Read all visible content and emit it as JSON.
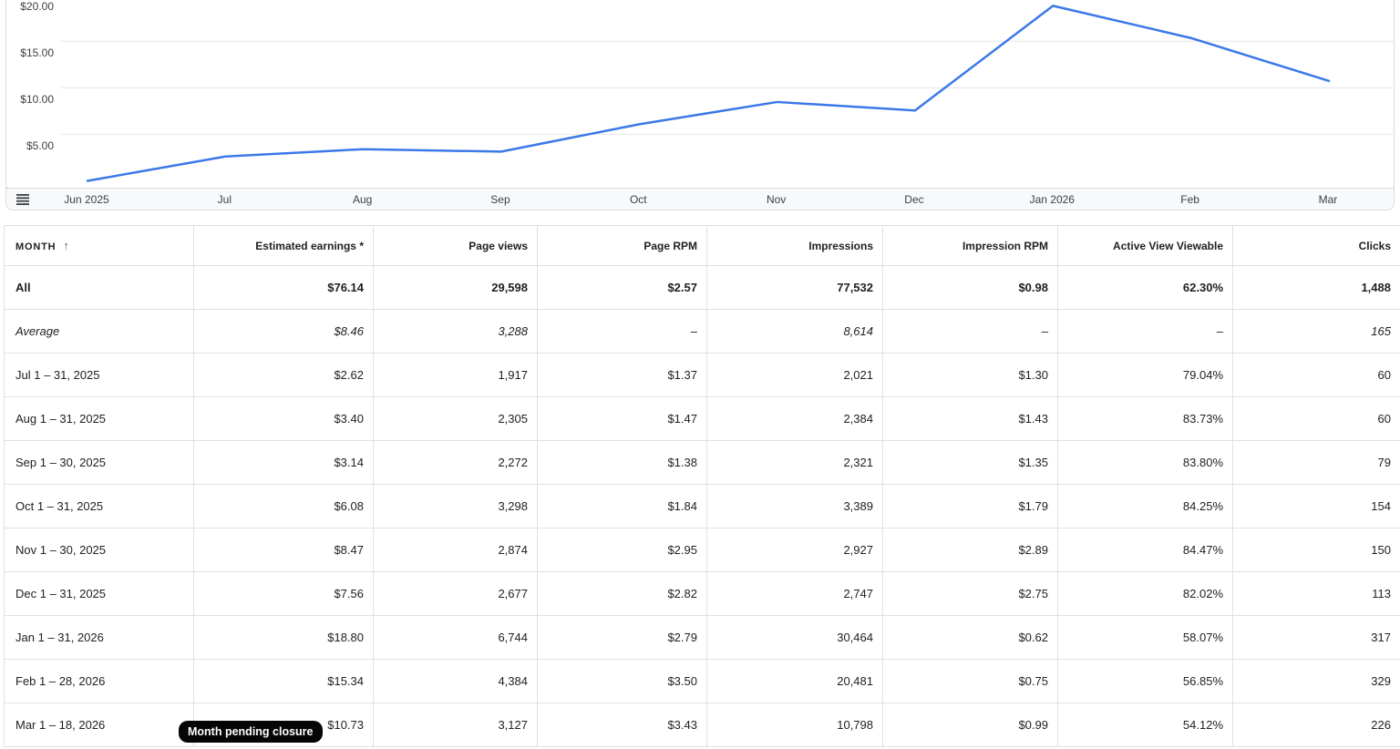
{
  "chart_data": {
    "type": "line",
    "categories": [
      "Jun 2025",
      "Jul",
      "Aug",
      "Sep",
      "Oct",
      "Nov",
      "Dec",
      "Jan 2026",
      "Feb",
      "Mar"
    ],
    "series": [
      {
        "name": "Estimated earnings",
        "values": [
          0,
          2.62,
          3.4,
          3.14,
          6.08,
          8.47,
          7.56,
          18.8,
          15.34,
          10.73
        ]
      }
    ],
    "y_ticks": [
      {
        "value": 20,
        "label": "$20.00"
      },
      {
        "value": 15,
        "label": "$15.00"
      },
      {
        "value": 10,
        "label": "$10.00"
      },
      {
        "value": 5,
        "label": "$5.00"
      }
    ],
    "ylim": [
      0,
      20.3
    ],
    "xlabel": "",
    "ylabel": "",
    "grid": "horizontal",
    "legend": "none"
  },
  "table": {
    "sort_icon": "↑",
    "sorted_by": "MONTH",
    "columns": [
      {
        "key": "month",
        "label": "MONTH",
        "align": "left"
      },
      {
        "key": "estimated-earnings",
        "label": "Estimated earnings *",
        "align": "right"
      },
      {
        "key": "page-views",
        "label": "Page views",
        "align": "right"
      },
      {
        "key": "page-rpm",
        "label": "Page RPM",
        "align": "right"
      },
      {
        "key": "impressions",
        "label": "Impressions",
        "align": "right"
      },
      {
        "key": "impression-rpm",
        "label": "Impression RPM",
        "align": "right"
      },
      {
        "key": "active-view-viewable",
        "label": "Active View Viewable",
        "align": "right"
      },
      {
        "key": "clicks",
        "label": "Clicks",
        "align": "right"
      }
    ],
    "rows": [
      {
        "type": "total",
        "cells": [
          "All",
          "$76.14",
          "29,598",
          "$2.57",
          "77,532",
          "$0.98",
          "62.30%",
          "1,488"
        ]
      },
      {
        "type": "average",
        "cells": [
          "Average",
          "$8.46",
          "3,288",
          "–",
          "8,614",
          "–",
          "–",
          "165"
        ]
      },
      {
        "type": "month",
        "cells": [
          "Jul 1 – 31, 2025",
          "$2.62",
          "1,917",
          "$1.37",
          "2,021",
          "$1.30",
          "79.04%",
          "60"
        ]
      },
      {
        "type": "month",
        "cells": [
          "Aug 1 – 31, 2025",
          "$3.40",
          "2,305",
          "$1.47",
          "2,384",
          "$1.43",
          "83.73%",
          "60"
        ]
      },
      {
        "type": "month",
        "cells": [
          "Sep 1 – 30, 2025",
          "$3.14",
          "2,272",
          "$1.38",
          "2,321",
          "$1.35",
          "83.80%",
          "79"
        ]
      },
      {
        "type": "month",
        "cells": [
          "Oct 1 – 31, 2025",
          "$6.08",
          "3,298",
          "$1.84",
          "3,389",
          "$1.79",
          "84.25%",
          "154"
        ]
      },
      {
        "type": "month",
        "cells": [
          "Nov 1 – 30, 2025",
          "$8.47",
          "2,874",
          "$2.95",
          "2,927",
          "$2.89",
          "84.47%",
          "150"
        ]
      },
      {
        "type": "month",
        "cells": [
          "Dec 1 – 31, 2025",
          "$7.56",
          "2,677",
          "$2.82",
          "2,747",
          "$2.75",
          "82.02%",
          "113"
        ]
      },
      {
        "type": "month",
        "cells": [
          "Jan 1 – 31, 2026",
          "$18.80",
          "6,744",
          "$2.79",
          "30,464",
          "$0.62",
          "58.07%",
          "317"
        ]
      },
      {
        "type": "month",
        "cells": [
          "Feb 1 – 28, 2026",
          "$15.34",
          "4,384",
          "$3.50",
          "20,481",
          "$0.75",
          "56.85%",
          "329"
        ]
      },
      {
        "type": "month",
        "cells": [
          "Mar 1 – 18, 2026",
          "$10.73",
          "3,127",
          "$3.43",
          "10,798",
          "$0.99",
          "54.12%",
          "226"
        ]
      }
    ]
  },
  "tooltip": {
    "text": "Month pending closure"
  },
  "colors": {
    "line": "#3b78e8",
    "grid": "#e6e6e6",
    "card_border": "#dadce0",
    "table_border": "#e0e0e0",
    "strip_bg": "#f8f9fa",
    "tooltip_bg": "#050505",
    "text": "#202124",
    "axis_text": "#3c4043",
    "icon": "#3c4043"
  }
}
